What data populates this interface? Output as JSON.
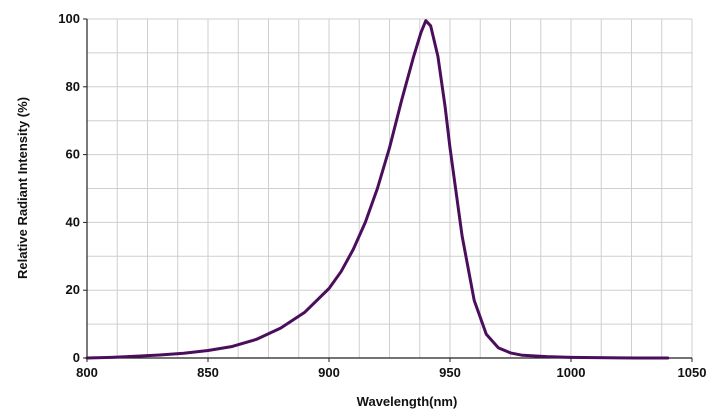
{
  "chart_data": {
    "type": "line",
    "title": "",
    "xlabel": "Wavelength(nm)",
    "ylabel": "Relative Radiant Intensity (%)",
    "xlim": [
      800,
      1050
    ],
    "ylim": [
      0,
      100
    ],
    "xticks": [
      "800",
      "850",
      "900",
      "950",
      "1000",
      "1050"
    ],
    "yticks": [
      "0",
      "20",
      "40",
      "60",
      "80",
      "100"
    ],
    "x_minor_step": 12.5,
    "y_minor_step": 10,
    "grid": true,
    "legend": "none",
    "line_color": "#4b0e5c",
    "series": [
      {
        "x": [
          800,
          810,
          820,
          830,
          840,
          850,
          860,
          870,
          880,
          890,
          900,
          905,
          910,
          915,
          920,
          925,
          930,
          935,
          938,
          940,
          942,
          945,
          948,
          950,
          955,
          960,
          965,
          970,
          975,
          980,
          990,
          1000,
          1010,
          1020,
          1030,
          1040
        ],
        "y": [
          0,
          0.2,
          0.5,
          0.9,
          1.4,
          2.2,
          3.4,
          5.5,
          8.8,
          13.5,
          20.5,
          25.5,
          32,
          40,
          50,
          62,
          76,
          89,
          96,
          99.5,
          98,
          89,
          74,
          62,
          36,
          17,
          7,
          3,
          1.5,
          0.8,
          0.4,
          0.2,
          0.1,
          0.05,
          0,
          0
        ]
      }
    ]
  }
}
